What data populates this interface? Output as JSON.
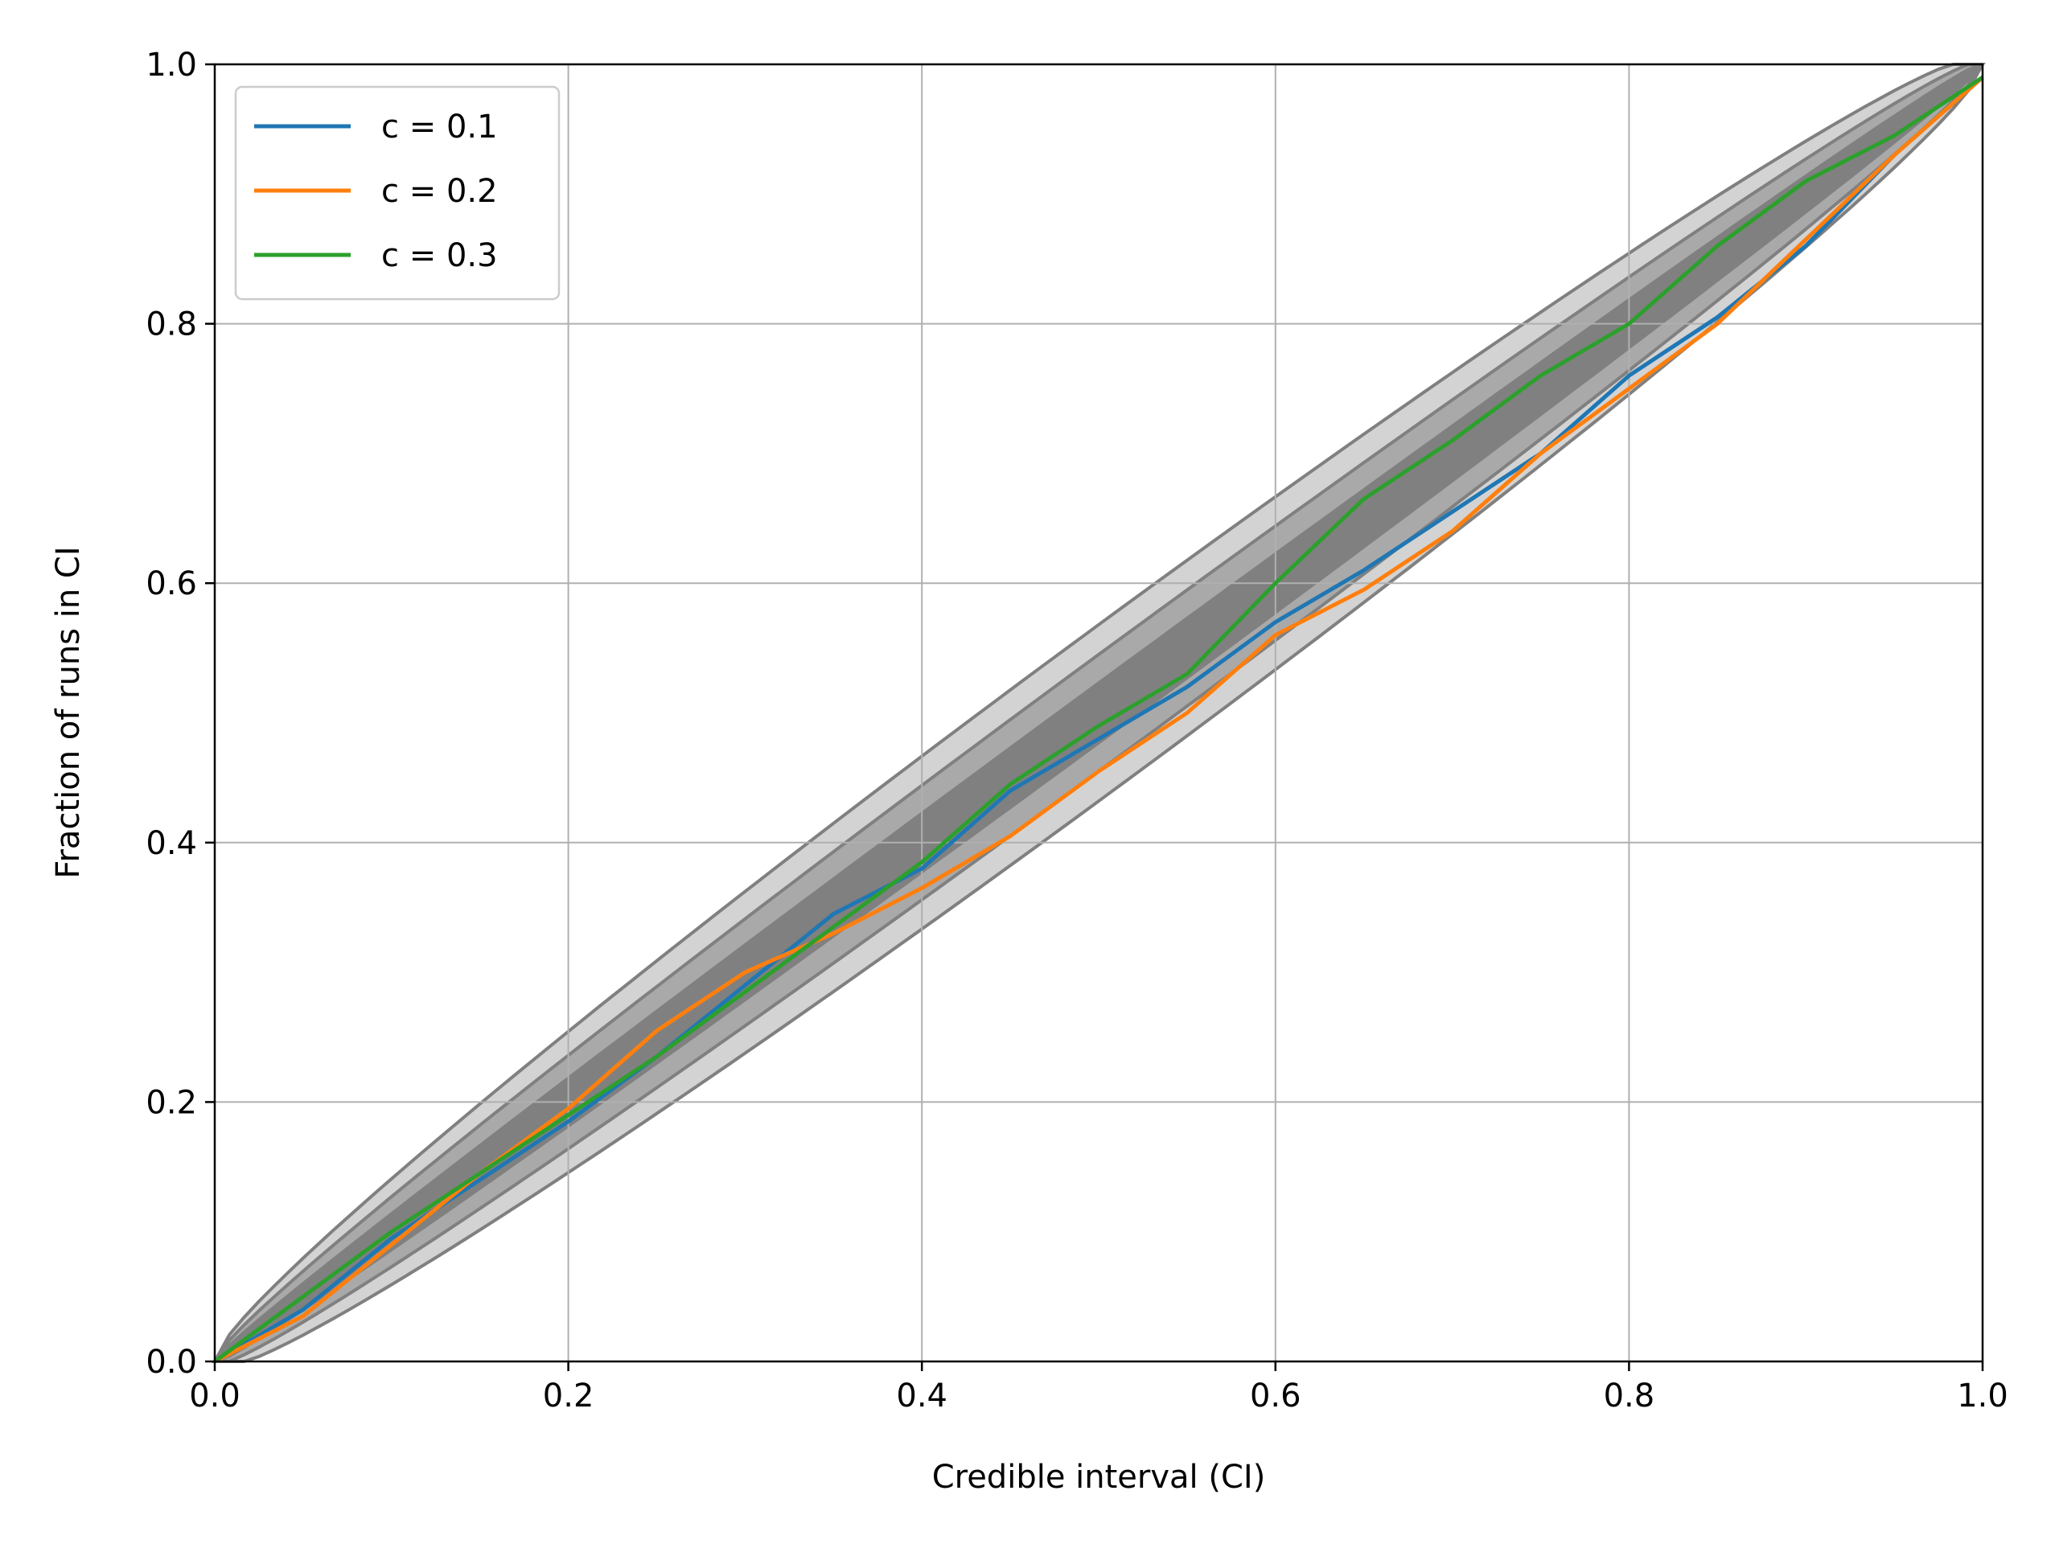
{
  "chart_data": {
    "type": "line",
    "title": "",
    "xlabel": "Credible interval (CI)",
    "ylabel": "Fraction of runs in CI",
    "xlim": [
      0,
      1
    ],
    "ylim": [
      0,
      1
    ],
    "xticks": [
      "0.0",
      "0.2",
      "0.4",
      "0.6",
      "0.8",
      "1.0"
    ],
    "yticks": [
      "0.0",
      "0.2",
      "0.4",
      "0.6",
      "0.8",
      "1.0"
    ],
    "grid": true,
    "legend_position": "upper-left",
    "band_colors": [
      "#d3d3d3",
      "#a9a9a9",
      "#808080"
    ],
    "confidence_bands": [
      {
        "level": "outer",
        "half_width_at_mid": 0.068
      },
      {
        "level": "middle",
        "half_width_at_mid": 0.045
      },
      {
        "level": "inner",
        "half_width_at_mid": 0.023
      }
    ],
    "series": [
      {
        "name": "c = 0.1",
        "color": "#1f77b4",
        "x": [
          0.0,
          0.05,
          0.1,
          0.15,
          0.2,
          0.25,
          0.3,
          0.35,
          0.4,
          0.45,
          0.5,
          0.55,
          0.6,
          0.65,
          0.7,
          0.75,
          0.8,
          0.85,
          0.9,
          0.95,
          1.0
        ],
        "y": [
          0.0,
          0.04,
          0.095,
          0.14,
          0.185,
          0.235,
          0.29,
          0.345,
          0.38,
          0.44,
          0.48,
          0.52,
          0.57,
          0.61,
          0.655,
          0.7,
          0.76,
          0.805,
          0.86,
          0.93,
          0.99
        ]
      },
      {
        "name": "c = 0.2",
        "color": "#ff7f0e",
        "x": [
          0.0,
          0.05,
          0.1,
          0.15,
          0.2,
          0.25,
          0.3,
          0.35,
          0.4,
          0.45,
          0.5,
          0.55,
          0.6,
          0.65,
          0.7,
          0.75,
          0.8,
          0.85,
          0.9,
          0.95,
          1.0
        ],
        "y": [
          0.0,
          0.035,
          0.09,
          0.145,
          0.195,
          0.255,
          0.3,
          0.33,
          0.365,
          0.405,
          0.455,
          0.5,
          0.56,
          0.595,
          0.64,
          0.7,
          0.75,
          0.8,
          0.865,
          0.93,
          0.99
        ]
      },
      {
        "name": "c = 0.3",
        "color": "#2ca02c",
        "x": [
          0.0,
          0.05,
          0.1,
          0.15,
          0.2,
          0.25,
          0.3,
          0.35,
          0.4,
          0.45,
          0.5,
          0.55,
          0.6,
          0.65,
          0.7,
          0.75,
          0.8,
          0.85,
          0.9,
          0.95,
          1.0
        ],
        "y": [
          0.0,
          0.05,
          0.1,
          0.145,
          0.19,
          0.235,
          0.285,
          0.335,
          0.385,
          0.445,
          0.49,
          0.53,
          0.6,
          0.665,
          0.71,
          0.76,
          0.8,
          0.86,
          0.91,
          0.945,
          0.99
        ]
      }
    ]
  }
}
